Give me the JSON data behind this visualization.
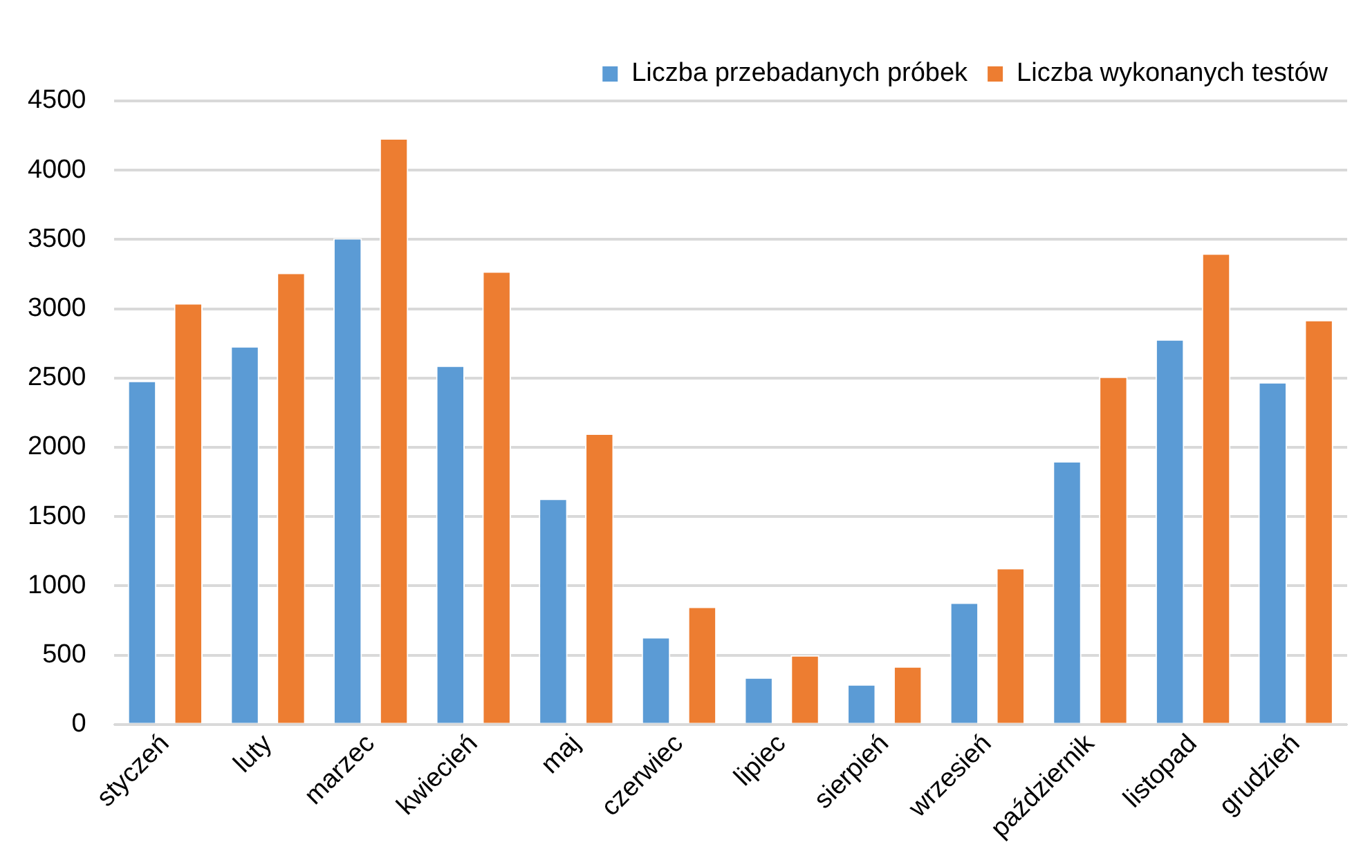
{
  "chart_data": {
    "type": "bar",
    "categories": [
      "styczeń",
      "luty",
      "marzec",
      "kwiecień",
      "maj",
      "czerwiec",
      "lipiec",
      "sierpień",
      "wrzesień",
      "październik",
      "listopad",
      "grudzień"
    ],
    "series": [
      {
        "name": "Liczba przebadanych próbek",
        "color": "#5b9bd5",
        "values": [
          2480,
          2730,
          3510,
          2590,
          1630,
          630,
          340,
          290,
          880,
          1900,
          2780,
          2470
        ]
      },
      {
        "name": "Liczba wykonanych testów",
        "color": "#ed7d31",
        "values": [
          3040,
          3260,
          4230,
          3270,
          2100,
          850,
          500,
          420,
          1130,
          2510,
          3400,
          2920
        ]
      }
    ],
    "ylim": [
      0,
      4500
    ],
    "yticks": [
      0,
      500,
      1000,
      1500,
      2000,
      2500,
      3000,
      3500,
      4000,
      4500
    ],
    "grid": "y",
    "legend": "top right"
  }
}
